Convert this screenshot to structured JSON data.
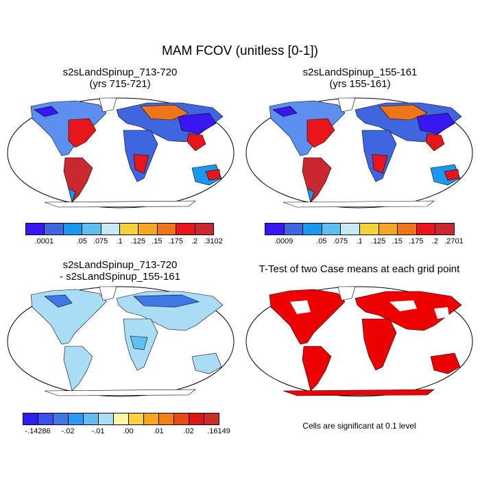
{
  "title": "MAM FCOV (unitless [0-1])",
  "panels": [
    {
      "id": "p1",
      "title_line1": "s2sLandSpinup_713-720",
      "title_line2": "(yrs 715-721)"
    },
    {
      "id": "p2",
      "title_line1": "s2sLandSpinup_155-161",
      "title_line2": "(yrs 155-161)"
    },
    {
      "id": "p3",
      "title_line1": "s2sLandSpinup_713-720",
      "title_line2": "- s2sLandSpinup_155-161"
    },
    {
      "id": "p4",
      "title_line1": "T-Test of two Case means at each grid point",
      "title_line2": ""
    }
  ],
  "colorbars": [
    {
      "id": "cb1",
      "colors": [
        "#3a16f0",
        "#3f66df",
        "#1a98f0",
        "#5ec0ef",
        "#c6e9f6",
        "#f4d33a",
        "#f5a623",
        "#ef7519",
        "#e8161b",
        "#c8282e"
      ],
      "labels": [
        ".0001",
        "",
        ".05",
        ".075",
        ".1",
        ".125",
        ".15",
        ".175",
        ".2",
        ".3102"
      ]
    },
    {
      "id": "cb2",
      "colors": [
        "#3a16f0",
        "#3f66df",
        "#1a98f0",
        "#5ec0ef",
        "#c6e9f6",
        "#f4d33a",
        "#f5a623",
        "#ef7519",
        "#e8161b",
        "#c8282e"
      ],
      "labels": [
        ".0009",
        "",
        ".05",
        ".075",
        ".1",
        ".125",
        ".15",
        ".175",
        ".2",
        ".2701"
      ]
    },
    {
      "id": "cb3",
      "colors": [
        "#2f1ef2",
        "#3850f0",
        "#3e77e6",
        "#2d9af1",
        "#62bdf0",
        "#a9dcf5",
        "#fff9a6",
        "#fbd23b",
        "#f7a41f",
        "#f27f17",
        "#e84c13",
        "#db1717",
        "#cd2a2a"
      ],
      "labels": [
        "-.14286",
        "",
        "-.02",
        "",
        "-.01",
        "",
        ".00",
        "",
        ".01",
        "",
        ".02",
        "",
        ".16149"
      ]
    }
  ],
  "ttest_note": "Cells are significant at 0.1 level",
  "palette": {
    "ocean": "#ffffff",
    "land_outline": "#000000",
    "significant": "#ee0000"
  }
}
